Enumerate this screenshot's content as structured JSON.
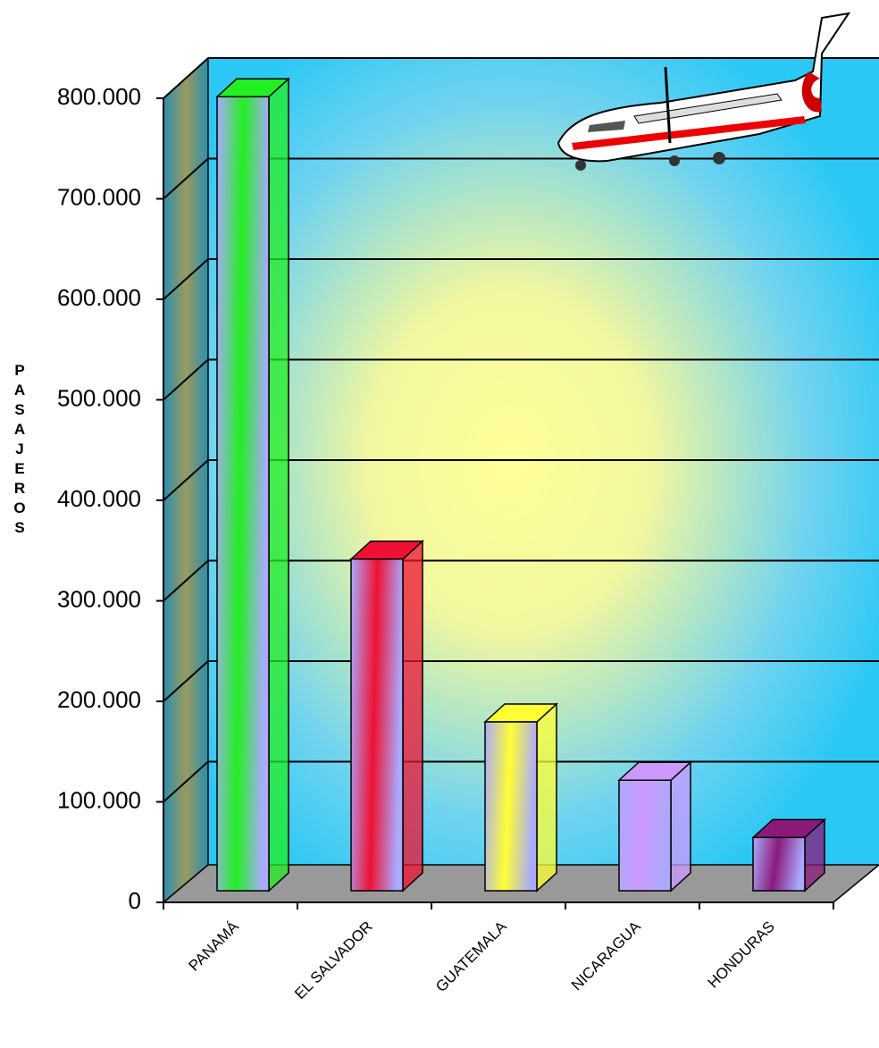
{
  "chart_data": {
    "type": "bar3d",
    "y_label": "PASAJEROS",
    "categories": [
      "PANAMÁ",
      "EL SALVADOR",
      "GUATEMALA",
      "NICARAGUA",
      "HONDURAS"
    ],
    "values": [
      790000,
      330000,
      168000,
      110000,
      53000
    ],
    "colors": [
      "#22ee22",
      "#ee1133",
      "#ffff33",
      "#cc99ff",
      "#8a1a7a"
    ],
    "ylim": [
      0,
      800000
    ],
    "yticks": [
      {
        "value": 0,
        "label": "0"
      },
      {
        "value": 100000,
        "label": "100.000"
      },
      {
        "value": 200000,
        "label": "200.000"
      },
      {
        "value": 300000,
        "label": "300.000"
      },
      {
        "value": 400000,
        "label": "400.000"
      },
      {
        "value": 500000,
        "label": "500.000"
      },
      {
        "value": 600000,
        "label": "600.000"
      },
      {
        "value": 700000,
        "label": "700.000"
      },
      {
        "value": 800000,
        "label": "800.000"
      }
    ],
    "grid": true
  }
}
